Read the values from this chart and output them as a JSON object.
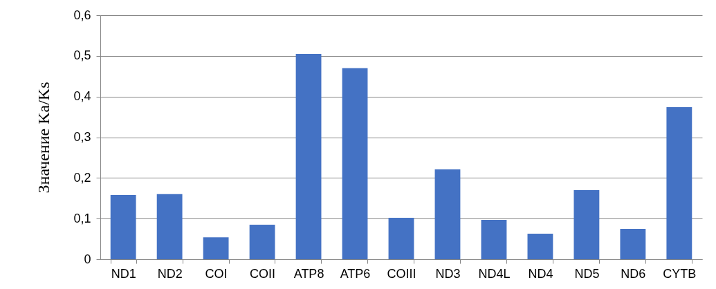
{
  "chart_data": {
    "type": "bar",
    "ylabel": "Значение Ka/Ks",
    "categories": [
      "ND1",
      "ND2",
      "COI",
      "COII",
      "ATP8",
      "ATP6",
      "COIII",
      "ND3",
      "ND4L",
      "ND4",
      "ND5",
      "ND6",
      "CYTB"
    ],
    "values": [
      0.158,
      0.16,
      0.054,
      0.085,
      0.505,
      0.47,
      0.102,
      0.221,
      0.097,
      0.063,
      0.17,
      0.075,
      0.374
    ],
    "color": "#4472c4",
    "ylim": [
      0,
      0.6
    ],
    "yticks": [
      {
        "value": 0,
        "label": "0"
      },
      {
        "value": 0.1,
        "label": "0,1"
      },
      {
        "value": 0.2,
        "label": "0,2"
      },
      {
        "value": 0.3,
        "label": "0,3"
      },
      {
        "value": 0.4,
        "label": "0,4"
      },
      {
        "value": 0.5,
        "label": "0,5"
      },
      {
        "value": 0.6,
        "label": "0,6"
      }
    ],
    "grid": "y"
  }
}
